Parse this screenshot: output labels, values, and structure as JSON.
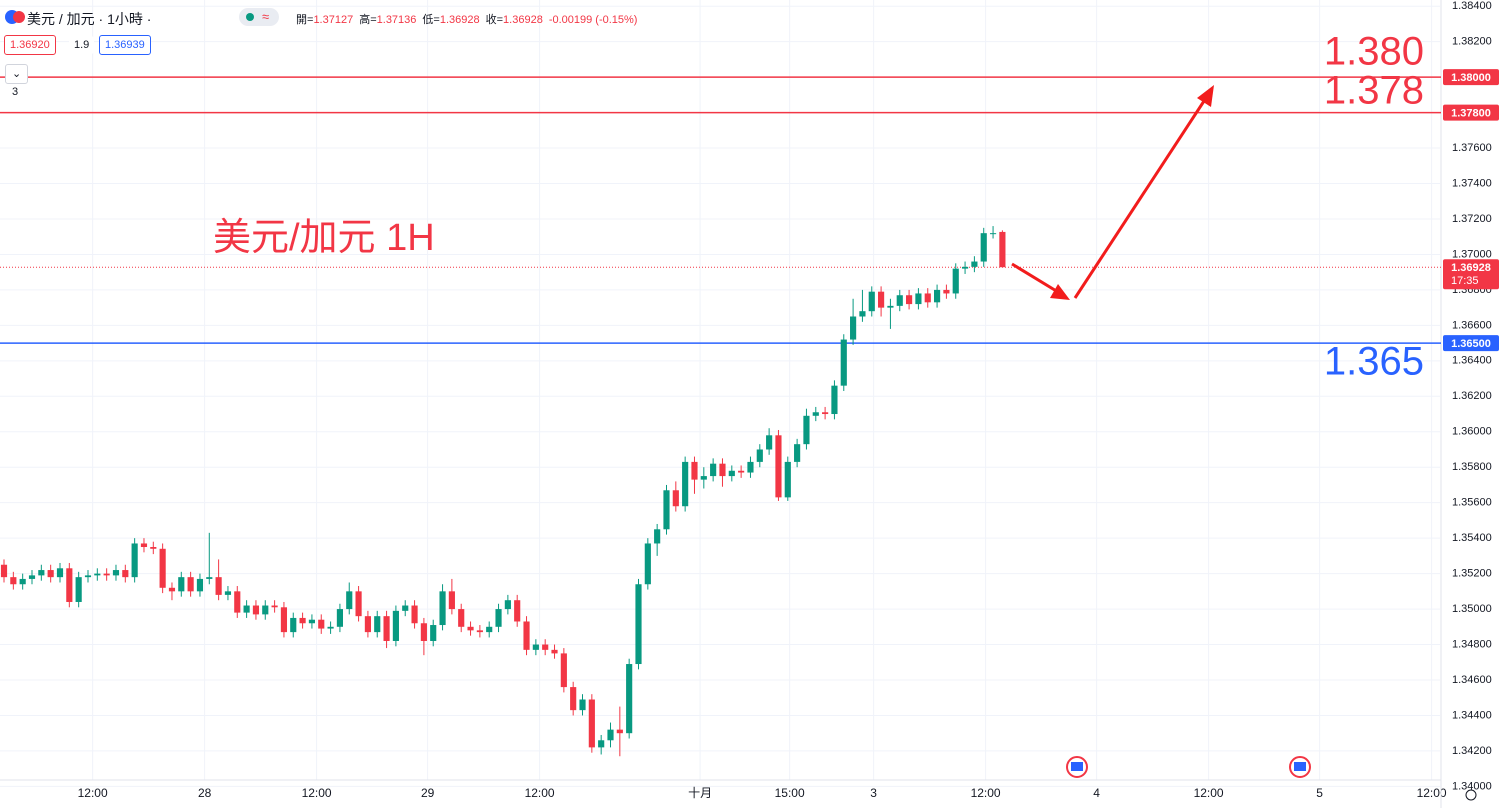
{
  "header": {
    "symbol": "美元 / 加元 · 1小時 ·",
    "badge": "≈",
    "ohlc": [
      {
        "label": "開=",
        "value": "1.37127"
      },
      {
        "label": "高=",
        "value": "1.37136"
      },
      {
        "label": "低=",
        "value": "1.36928"
      },
      {
        "label": "收=",
        "value": "1.36928"
      }
    ],
    "change": "-0.00199 (-0.15%)",
    "sell": "1.36920",
    "spread": "1.9",
    "buy": "1.36939",
    "indicators": "3"
  },
  "chart_data": {
    "type": "candlestick",
    "up_color": "#089981",
    "down_color": "#f23645",
    "grid": true,
    "open": [
      1.3525,
      1.3518,
      1.3514,
      1.3517,
      1.3519,
      1.3522,
      1.3518,
      1.3523,
      1.3504,
      1.3518,
      1.3519,
      1.352,
      1.3519,
      1.3522,
      1.3518,
      1.3537,
      1.3535,
      1.3534,
      1.3512,
      1.351,
      1.3518,
      1.351,
      1.3517,
      1.3518,
      1.3508,
      1.351,
      1.3498,
      1.3502,
      1.3497,
      1.3502,
      1.3501,
      1.3487,
      1.3495,
      1.3492,
      1.3494,
      1.3489,
      1.349,
      1.35,
      1.351,
      1.3496,
      1.3487,
      1.3496,
      1.3482,
      1.3499,
      1.3502,
      1.3492,
      1.3482,
      1.3491,
      1.351,
      1.35,
      1.349,
      1.3488,
      1.3487,
      1.349,
      1.35,
      1.3505,
      1.3493,
      1.3477,
      1.348,
      1.3477,
      1.3475,
      1.3456,
      1.3443,
      1.3449,
      1.3422,
      1.3426,
      1.3432,
      1.343,
      1.3469,
      1.3514,
      1.3537,
      1.3545,
      1.3567,
      1.3558,
      1.3583,
      1.3573,
      1.3575,
      1.3582,
      1.3575,
      1.3578,
      1.3577,
      1.3583,
      1.359,
      1.3598,
      1.3563,
      1.3583,
      1.3593,
      1.3609,
      1.3611,
      1.361,
      1.3626,
      1.3652,
      1.3665,
      1.3668,
      1.3679,
      1.367,
      1.3671,
      1.3677,
      1.3672,
      1.3678,
      1.3673,
      1.368,
      1.3678,
      1.3692,
      1.3693,
      1.3696,
      1.3712,
      1.37127
    ],
    "high": [
      1.3528,
      1.3521,
      1.352,
      1.3522,
      1.3525,
      1.3525,
      1.3526,
      1.3526,
      1.3521,
      1.3522,
      1.3523,
      1.3523,
      1.3525,
      1.3525,
      1.354,
      1.354,
      1.3538,
      1.3537,
      1.3515,
      1.3521,
      1.3521,
      1.352,
      1.3543,
      1.3528,
      1.3513,
      1.3513,
      1.3505,
      1.3505,
      1.3505,
      1.3505,
      1.3504,
      1.3498,
      1.3498,
      1.3497,
      1.3497,
      1.3493,
      1.3503,
      1.3515,
      1.3513,
      1.3499,
      1.3499,
      1.3499,
      1.3502,
      1.3505,
      1.3505,
      1.3495,
      1.3494,
      1.3514,
      1.3517,
      1.3503,
      1.3493,
      1.3491,
      1.3493,
      1.3503,
      1.3508,
      1.3508,
      1.3496,
      1.3483,
      1.3483,
      1.348,
      1.3478,
      1.3459,
      1.3452,
      1.3452,
      1.3429,
      1.3436,
      1.3445,
      1.3472,
      1.3517,
      1.354,
      1.3548,
      1.357,
      1.3572,
      1.3586,
      1.3586,
      1.358,
      1.3585,
      1.3585,
      1.3581,
      1.3581,
      1.3586,
      1.3593,
      1.3602,
      1.3601,
      1.3586,
      1.3596,
      1.3613,
      1.3614,
      1.3614,
      1.3629,
      1.3655,
      1.3675,
      1.368,
      1.3682,
      1.3682,
      1.3675,
      1.368,
      1.368,
      1.3681,
      1.3681,
      1.3683,
      1.3683,
      1.3695,
      1.3696,
      1.3699,
      1.3715,
      1.3716,
      1.37136
    ],
    "low": [
      1.3515,
      1.3511,
      1.3511,
      1.3514,
      1.3516,
      1.3515,
      1.3515,
      1.3501,
      1.3501,
      1.3515,
      1.3516,
      1.3516,
      1.3516,
      1.3515,
      1.3515,
      1.3532,
      1.3531,
      1.3509,
      1.3505,
      1.3507,
      1.3507,
      1.3507,
      1.3514,
      1.3505,
      1.3505,
      1.3495,
      1.3495,
      1.3494,
      1.3494,
      1.3498,
      1.3484,
      1.3484,
      1.3489,
      1.3489,
      1.3486,
      1.3486,
      1.3487,
      1.3497,
      1.3493,
      1.3484,
      1.3484,
      1.3478,
      1.3479,
      1.3496,
      1.3489,
      1.3474,
      1.3479,
      1.3488,
      1.3497,
      1.3487,
      1.3485,
      1.3484,
      1.3484,
      1.3487,
      1.3497,
      1.349,
      1.3474,
      1.3474,
      1.3474,
      1.3472,
      1.3453,
      1.344,
      1.344,
      1.3419,
      1.3418,
      1.3422,
      1.3417,
      1.3427,
      1.3466,
      1.3511,
      1.353,
      1.3542,
      1.3555,
      1.3555,
      1.3565,
      1.3568,
      1.3572,
      1.3569,
      1.3572,
      1.3574,
      1.3574,
      1.358,
      1.3587,
      1.3561,
      1.3561,
      1.358,
      1.359,
      1.3606,
      1.3607,
      1.3607,
      1.3623,
      1.3649,
      1.3662,
      1.3665,
      1.3665,
      1.3658,
      1.3668,
      1.3669,
      1.3669,
      1.367,
      1.367,
      1.3675,
      1.3675,
      1.3689,
      1.369,
      1.3693,
      1.3709,
      1.36928
    ],
    "close": [
      1.3518,
      1.3514,
      1.3517,
      1.3519,
      1.3522,
      1.3518,
      1.3523,
      1.3504,
      1.3518,
      1.3519,
      1.352,
      1.3519,
      1.3522,
      1.3518,
      1.3537,
      1.3535,
      1.3534,
      1.3512,
      1.351,
      1.3518,
      1.351,
      1.3517,
      1.3518,
      1.3508,
      1.351,
      1.3498,
      1.3502,
      1.3497,
      1.3502,
      1.3501,
      1.3487,
      1.3495,
      1.3492,
      1.3494,
      1.3489,
      1.349,
      1.35,
      1.351,
      1.3496,
      1.3487,
      1.3496,
      1.3482,
      1.3499,
      1.3502,
      1.3492,
      1.3482,
      1.3491,
      1.351,
      1.35,
      1.349,
      1.3488,
      1.3487,
      1.349,
      1.35,
      1.3505,
      1.3493,
      1.3477,
      1.348,
      1.3477,
      1.3475,
      1.3456,
      1.3443,
      1.3449,
      1.3422,
      1.3426,
      1.3432,
      1.343,
      1.3469,
      1.3514,
      1.3537,
      1.3545,
      1.3567,
      1.3558,
      1.3583,
      1.3573,
      1.3575,
      1.3582,
      1.3575,
      1.3578,
      1.3577,
      1.3583,
      1.359,
      1.3598,
      1.3563,
      1.3583,
      1.3593,
      1.3609,
      1.3611,
      1.361,
      1.3626,
      1.3652,
      1.3665,
      1.3668,
      1.3679,
      1.367,
      1.3671,
      1.3677,
      1.3672,
      1.3678,
      1.3673,
      1.368,
      1.3678,
      1.3692,
      1.3693,
      1.3696,
      1.3712,
      1.3712,
      1.36928
    ],
    "ylim": [
      1.34036,
      1.38435
    ],
    "yticks": [
      {
        "value": 1.384,
        "label": "1.38400"
      },
      {
        "value": 1.382,
        "label": "1.38200"
      },
      {
        "value": 1.38,
        "label": "1.38000"
      },
      {
        "value": 1.378,
        "label": "1.37800"
      },
      {
        "value": 1.376,
        "label": "1.37600"
      },
      {
        "value": 1.374,
        "label": "1.37400"
      },
      {
        "value": 1.372,
        "label": "1.37200"
      },
      {
        "value": 1.37,
        "label": "1.37000"
      },
      {
        "value": 1.368,
        "label": "1.36800"
      },
      {
        "value": 1.366,
        "label": "1.36600"
      },
      {
        "value": 1.364,
        "label": "1.36400"
      },
      {
        "value": 1.362,
        "label": "1.36200"
      },
      {
        "value": 1.36,
        "label": "1.36000"
      },
      {
        "value": 1.358,
        "label": "1.35800"
      },
      {
        "value": 1.356,
        "label": "1.35600"
      },
      {
        "value": 1.354,
        "label": "1.35400"
      },
      {
        "value": 1.352,
        "label": "1.35200"
      },
      {
        "value": 1.35,
        "label": "1.35000"
      },
      {
        "value": 1.348,
        "label": "1.34800"
      },
      {
        "value": 1.346,
        "label": "1.34600"
      },
      {
        "value": 1.344,
        "label": "1.34400"
      },
      {
        "value": 1.342,
        "label": "1.34200"
      },
      {
        "value": 1.34,
        "label": "1.34000"
      }
    ],
    "xlim": [
      -0.43,
      153.9
    ],
    "xticks": [
      {
        "value": 9.5,
        "label": "12:00"
      },
      {
        "value": 21.5,
        "label": "28"
      },
      {
        "value": 33.5,
        "label": "12:00"
      },
      {
        "value": 45.4,
        "label": "29"
      },
      {
        "value": 57.4,
        "label": "12:00"
      },
      {
        "value": 74.6,
        "label": "十月"
      },
      {
        "value": 84.2,
        "label": "15:00"
      },
      {
        "value": 93.2,
        "label": "3"
      },
      {
        "value": 105.2,
        "label": "12:00"
      },
      {
        "value": 117.1,
        "label": "4"
      },
      {
        "value": 129.1,
        "label": "12:00"
      },
      {
        "value": 141,
        "label": "5"
      },
      {
        "value": 153,
        "label": "12:00"
      }
    ],
    "hlines": [
      {
        "value": 1.38,
        "label": "1.38000",
        "color": "#f23645"
      },
      {
        "value": 1.378,
        "label": "1.37800",
        "color": "#f23645"
      },
      {
        "value": 1.365,
        "label": "1.36500",
        "color": "#2962ff"
      }
    ],
    "last_price": 1.36928,
    "countdown": "17:35",
    "annotations": [
      {
        "text": "1.380",
        "color": "#f23645"
      },
      {
        "text": "1.378",
        "color": "#f23645"
      },
      {
        "text": "1.365",
        "color": "#2962ff"
      },
      {
        "text": "美元/加元 1H",
        "color": "#f23645"
      }
    ]
  }
}
